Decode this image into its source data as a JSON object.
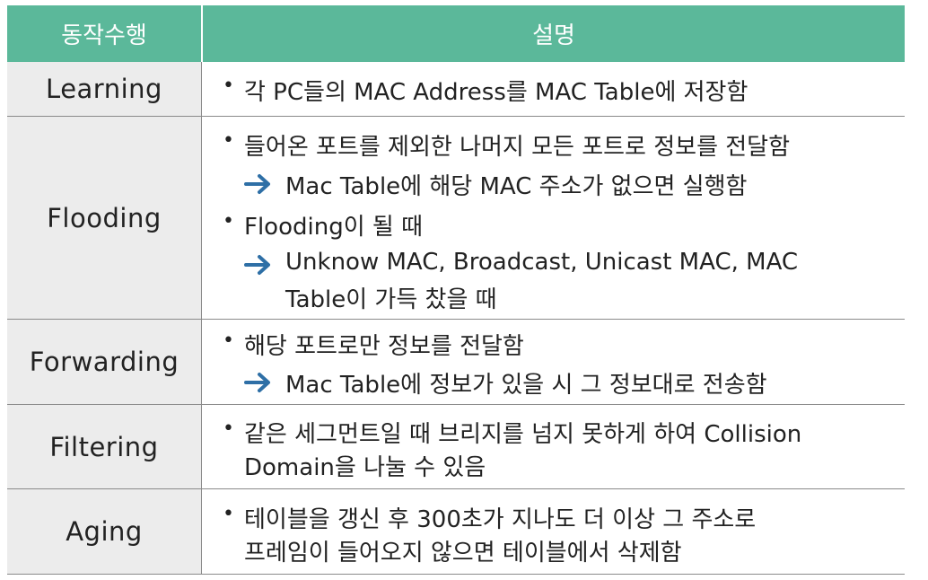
{
  "header": {
    "col1": "동작수행",
    "col2": "설명"
  },
  "rows": [
    {
      "action": "Learning",
      "lines": [
        "각 PC들의 MAC Address를 MAC Table에 저장함"
      ]
    },
    {
      "action": "Flooding",
      "lines": [
        "들어온 포트를 제외한 나머지 모든 포트로 정보를 전달함",
        "Mac Table에 해당 MAC 주소가 없으면 실행함",
        "Flooding이 될 때",
        "Unknow MAC, Broadcast, Unicast MAC, MAC",
        "Table이 가득 찼을 때"
      ]
    },
    {
      "action": "Forwarding",
      "lines": [
        "해당 포트로만 정보를 전달함",
        "Mac Table에 정보가 있을 시 그 정보대로 전송함"
      ]
    },
    {
      "action": "Filtering",
      "lines": [
        "같은 세그먼트일 때 브리지를 넘지 못하게 하여 Collision",
        "Domain을 나눌 수 있음"
      ]
    },
    {
      "action": "Aging",
      "lines": [
        "테이블을 갱신 후 300초가 지나도 더 이상 그 주소로",
        "프레임이 들어오지 않으면 테이블에서 삭제함"
      ]
    }
  ],
  "colors": {
    "header_bg": "#5bb89a",
    "action_bg": "#ececec",
    "arrow": "#2e6fa6"
  },
  "icons": {
    "bullet": "bullet-dot",
    "arrow": "right-arrow-icon"
  }
}
